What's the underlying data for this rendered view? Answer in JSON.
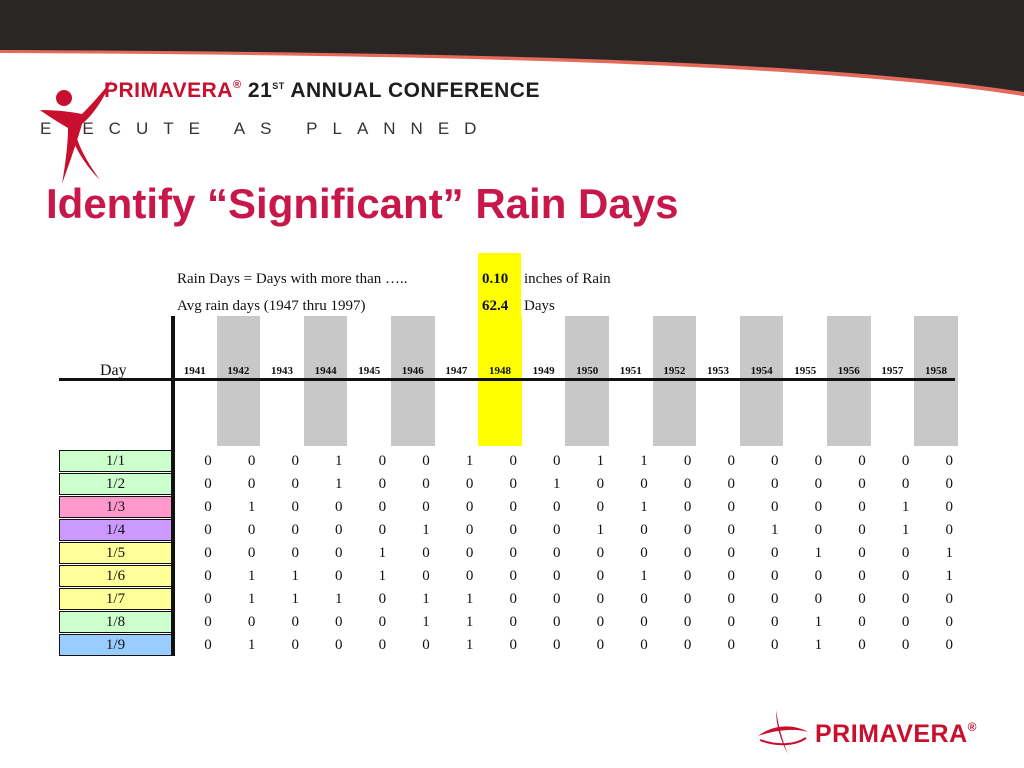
{
  "header": {
    "brand": "PRIMAVERA",
    "registered": "®",
    "conference_num": "21",
    "conference_sup": "ST",
    "conference_rest": "ANNUAL CONFERENCE",
    "tagline": "ECUTE AS PLANNED",
    "tagline_prefix": "E"
  },
  "title": "Identify “Significant” Rain Days",
  "info": {
    "line1_prefix": "Rain Days  =  Days with more than …..",
    "threshold": "0.10",
    "line1_suffix": "inches of Rain",
    "line2_prefix": "Avg rain days (1947 thru 1997)",
    "avg": "62.4",
    "line2_suffix": "Days"
  },
  "table": {
    "day_header": "Day",
    "years": [
      "1941",
      "1942",
      "1943",
      "1944",
      "1945",
      "1946",
      "1947",
      "1948",
      "1949",
      "1950",
      "1951",
      "1952",
      "1953",
      "1954",
      "1955",
      "1956",
      "1957",
      "1958"
    ],
    "rows": [
      {
        "day": "1/1",
        "color": "#ccffcc",
        "values": [
          0,
          0,
          0,
          1,
          0,
          0,
          1,
          0,
          0,
          1,
          1,
          0,
          0,
          0,
          0,
          0,
          0,
          0
        ]
      },
      {
        "day": "1/2",
        "color": "#ccffcc",
        "values": [
          0,
          0,
          0,
          1,
          0,
          0,
          0,
          0,
          1,
          0,
          0,
          0,
          0,
          0,
          0,
          0,
          0,
          0
        ]
      },
      {
        "day": "1/3",
        "color": "#ff99cc",
        "values": [
          0,
          1,
          0,
          0,
          0,
          0,
          0,
          0,
          0,
          0,
          1,
          0,
          0,
          0,
          0,
          0,
          1,
          0
        ]
      },
      {
        "day": "1/4",
        "color": "#cc99ff",
        "values": [
          0,
          0,
          0,
          0,
          0,
          1,
          0,
          0,
          0,
          1,
          0,
          0,
          0,
          1,
          0,
          0,
          1,
          0
        ]
      },
      {
        "day": "1/5",
        "color": "#ffff99",
        "values": [
          0,
          0,
          0,
          0,
          1,
          0,
          0,
          0,
          0,
          0,
          0,
          0,
          0,
          0,
          1,
          0,
          0,
          1
        ]
      },
      {
        "day": "1/6",
        "color": "#ffff99",
        "values": [
          0,
          1,
          1,
          0,
          1,
          0,
          0,
          0,
          0,
          0,
          1,
          0,
          0,
          0,
          0,
          0,
          0,
          1
        ]
      },
      {
        "day": "1/7",
        "color": "#ffff99",
        "values": [
          0,
          1,
          1,
          1,
          0,
          1,
          1,
          0,
          0,
          0,
          0,
          0,
          0,
          0,
          0,
          0,
          0,
          0
        ]
      },
      {
        "day": "1/8",
        "color": "#ccffcc",
        "values": [
          0,
          0,
          0,
          0,
          0,
          1,
          1,
          0,
          0,
          0,
          0,
          0,
          0,
          0,
          1,
          0,
          0,
          0
        ]
      },
      {
        "day": "1/9",
        "color": "#99ccff",
        "values": [
          0,
          1,
          0,
          0,
          0,
          0,
          1,
          0,
          0,
          0,
          0,
          0,
          0,
          0,
          1,
          0,
          0,
          0
        ]
      }
    ]
  },
  "footer": {
    "brand": "PRIMAVERA",
    "registered": "®"
  },
  "colors": {
    "brand_red": "#c8102e",
    "title_pink": "#c8174b",
    "highlight_yellow": "#ffff00",
    "column_gray": "#c8c8c8"
  }
}
